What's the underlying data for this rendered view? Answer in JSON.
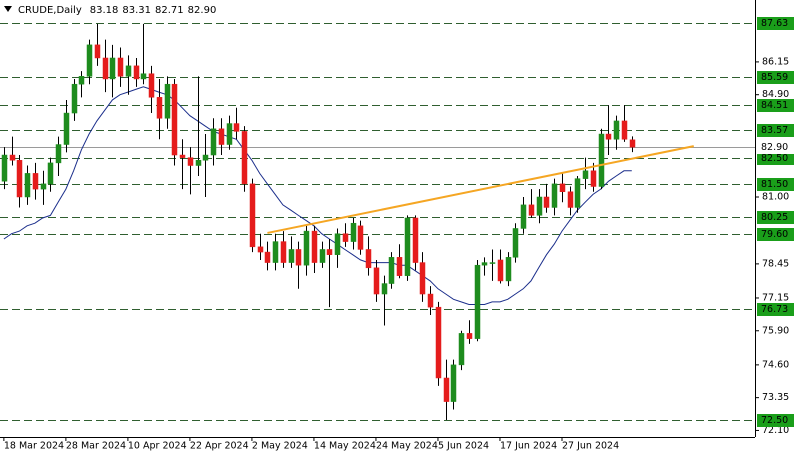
{
  "chart_data": {
    "type": "candlestick",
    "title": "CRUDE,Daily",
    "quote": [
      "83.18",
      "83.31",
      "82.71",
      "82.90"
    ],
    "categories": [
      "18 Mar 2024",
      null,
      null,
      null,
      null,
      null,
      null,
      null,
      "28 Mar 2024",
      null,
      null,
      null,
      null,
      null,
      null,
      null,
      "10 Apr 2024",
      null,
      null,
      null,
      null,
      null,
      null,
      null,
      "22 Apr 2024",
      null,
      null,
      null,
      null,
      null,
      null,
      null,
      "2 May 2024",
      null,
      null,
      null,
      null,
      null,
      null,
      null,
      "14 May 2024",
      null,
      null,
      null,
      null,
      null,
      null,
      null,
      "24 May 2024",
      null,
      null,
      null,
      null,
      null,
      null,
      null,
      "5 Jun 2024",
      null,
      null,
      null,
      null,
      null,
      null,
      null,
      "17 Jun 2024",
      null,
      null,
      null,
      null,
      null,
      null,
      null,
      "27 Jun 2024",
      null,
      null,
      null,
      null,
      null,
      null,
      null,
      null,
      null
    ],
    "open": [
      81.6,
      82.6,
      82.4,
      81.0,
      81.9,
      81.3,
      81.5,
      82.3,
      83.0,
      84.2,
      85.3,
      85.6,
      86.8,
      86.3,
      85.5,
      86.3,
      85.6,
      86.0,
      85.5,
      85.7,
      84.8,
      84.0,
      85.3,
      82.6,
      82.5,
      82.2,
      82.4,
      82.6,
      83.6,
      83.0,
      83.8,
      83.5,
      81.5,
      79.1,
      78.9,
      78.5,
      79.3,
      78.5,
      79.0,
      78.4,
      79.7,
      78.5,
      79.0,
      78.8,
      79.6,
      79.3,
      79.9,
      79.0,
      78.3,
      77.3,
      77.7,
      78.7,
      78.0,
      80.2,
      78.5,
      77.3,
      76.8,
      74.1,
      73.2,
      74.6,
      75.8,
      75.6,
      78.4,
      78.5,
      78.6,
      77.8,
      78.7,
      79.8,
      80.7,
      80.3,
      81.0,
      80.6,
      81.5,
      81.2,
      80.6,
      81.7,
      82.0,
      81.4,
      83.4,
      83.2,
      83.9,
      83.18
    ],
    "high": [
      82.9,
      83.3,
      82.6,
      82.2,
      82.3,
      82.0,
      82.5,
      83.3,
      84.7,
      85.5,
      85.8,
      87.0,
      87.6,
      87.0,
      86.8,
      86.7,
      86.4,
      86.3,
      87.6,
      86.0,
      85.5,
      85.6,
      85.5,
      83.2,
      82.9,
      85.6,
      83.4,
      84.0,
      84.0,
      84.1,
      84.4,
      83.7,
      81.7,
      79.6,
      79.3,
      79.6,
      79.7,
      79.5,
      79.3,
      79.9,
      79.9,
      79.3,
      79.4,
      79.8,
      80.0,
      80.2,
      80.1,
      79.5,
      78.6,
      78.0,
      78.9,
      79.2,
      80.3,
      80.3,
      78.9,
      77.6,
      77.0,
      74.8,
      74.8,
      75.9,
      76.3,
      78.6,
      78.7,
      79.0,
      79.0,
      78.9,
      80.0,
      81.0,
      81.3,
      81.3,
      81.5,
      81.7,
      81.9,
      81.4,
      81.8,
      82.5,
      82.3,
      83.6,
      84.5,
      84.1,
      84.5,
      83.31
    ],
    "low": [
      81.3,
      82.2,
      80.6,
      80.7,
      80.9,
      80.7,
      81.2,
      81.8,
      82.7,
      83.9,
      84.8,
      85.3,
      86.0,
      85.0,
      84.8,
      85.2,
      84.9,
      85.2,
      85.3,
      84.2,
      83.2,
      83.6,
      82.2,
      81.3,
      81.1,
      81.8,
      81.0,
      82.2,
      82.6,
      82.8,
      83.2,
      81.2,
      78.9,
      78.6,
      78.2,
      78.2,
      78.3,
      78.3,
      77.5,
      78.0,
      78.1,
      78.3,
      76.8,
      78.3,
      79.1,
      79.0,
      78.8,
      78.0,
      77.0,
      76.1,
      77.5,
      77.9,
      77.8,
      78.2,
      77.0,
      76.5,
      73.8,
      72.5,
      72.9,
      74.4,
      75.4,
      75.5,
      78.0,
      77.8,
      77.7,
      77.6,
      78.5,
      79.6,
      80.2,
      80.0,
      80.4,
      80.3,
      80.8,
      80.3,
      80.4,
      81.3,
      81.2,
      81.3,
      82.6,
      82.8,
      83.1,
      82.71
    ],
    "close": [
      82.6,
      82.4,
      81.0,
      81.9,
      81.3,
      81.5,
      82.3,
      83.0,
      84.2,
      85.3,
      85.6,
      86.8,
      86.3,
      85.5,
      86.3,
      85.6,
      86.0,
      85.5,
      85.7,
      84.8,
      84.0,
      85.3,
      82.6,
      82.5,
      82.2,
      82.4,
      82.6,
      83.6,
      83.0,
      83.8,
      83.5,
      81.5,
      79.1,
      78.9,
      78.5,
      79.3,
      78.5,
      79.0,
      78.4,
      79.7,
      78.5,
      79.0,
      78.8,
      79.6,
      79.3,
      80.0,
      79.0,
      78.3,
      77.3,
      77.7,
      78.7,
      78.0,
      80.2,
      78.5,
      77.3,
      76.8,
      74.1,
      73.2,
      74.6,
      75.8,
      75.6,
      78.4,
      78.5,
      78.5,
      77.8,
      78.7,
      79.8,
      80.7,
      80.3,
      81.0,
      80.6,
      81.5,
      81.2,
      80.6,
      81.7,
      82.0,
      81.4,
      83.4,
      83.2,
      83.9,
      83.2,
      82.9
    ],
    "up_color": "#1e8c1e",
    "down_color": "#e51c1c",
    "moving_average": {
      "color": "#1c2f8c",
      "values": [
        79.4,
        79.6,
        79.7,
        79.9,
        80.0,
        80.2,
        80.3,
        80.8,
        81.3,
        82.0,
        82.8,
        83.4,
        83.9,
        84.3,
        84.7,
        84.9,
        85.0,
        85.1,
        85.2,
        85.1,
        85.0,
        84.9,
        84.7,
        84.4,
        84.1,
        83.9,
        83.7,
        83.5,
        83.4,
        83.3,
        83.2,
        82.8,
        82.4,
        81.9,
        81.5,
        81.1,
        80.7,
        80.5,
        80.3,
        80.1,
        79.9,
        79.6,
        79.4,
        79.2,
        79.0,
        78.8,
        78.6,
        78.5,
        78.5,
        78.5,
        78.5,
        78.4,
        78.4,
        78.2,
        78.0,
        77.8,
        77.5,
        77.3,
        77.1,
        77.0,
        76.9,
        76.9,
        76.9,
        77.0,
        77.0,
        77.1,
        77.3,
        77.5,
        77.8,
        78.3,
        78.8,
        79.2,
        79.7,
        80.1,
        80.5,
        80.8,
        81.1,
        81.3,
        81.6,
        81.8,
        82.0,
        82.0
      ]
    },
    "trendline": {
      "color": "#f5a623",
      "x": [
        34,
        89
      ],
      "values": [
        79.63,
        82.94
      ]
    },
    "levels": [
      87.63,
      85.59,
      84.51,
      83.57,
      {
        "value": 82.5,
        "label": "82.50"
      },
      {
        "value": 81.5,
        "label": "81.50"
      },
      80.25,
      {
        "value": 79.6,
        "label": "79.60"
      },
      76.73,
      {
        "value": 72.5,
        "label": "72.50"
      }
    ],
    "level_color": "#1a9e1a",
    "last_price": {
      "value": 82.9,
      "label": "82.90"
    },
    "xlim": [
      -0.5,
      96.9
    ],
    "ylim": [
      71.85,
      88.51
    ],
    "yticks": [
      {
        "value": 84.9,
        "label": "84.90"
      },
      86.15,
      78.45,
      77.15,
      {
        "value": 81.0,
        "label": "81.00"
      },
      {
        "value": 75.9,
        "label": "75.90"
      },
      {
        "value": 74.6,
        "label": "74.60"
      },
      73.35,
      {
        "value": 72.1,
        "label": "72.10"
      }
    ]
  }
}
